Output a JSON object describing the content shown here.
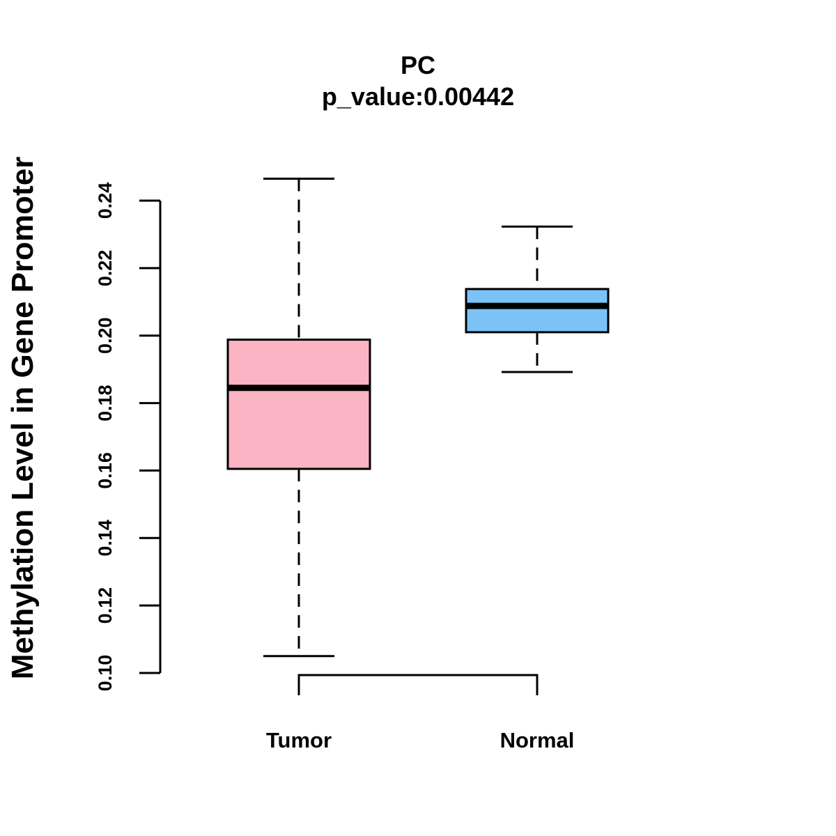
{
  "chart_data": {
    "type": "boxplot",
    "title": "PC",
    "subtitle": "p_value:0.00442",
    "xlabel": "",
    "ylabel": "Methylation Level in Gene Promoter",
    "ylim": [
      0.1,
      0.24
    ],
    "yticks": [
      0.1,
      0.12,
      0.14,
      0.16,
      0.18,
      0.2,
      0.22,
      0.24
    ],
    "ytick_labels": [
      "0.10",
      "0.12",
      "0.14",
      "0.16",
      "0.18",
      "0.20",
      "0.22",
      "0.24"
    ],
    "categories": [
      "Tumor",
      "Normal"
    ],
    "boxes": [
      {
        "name": "Tumor",
        "color": "#FBB4C4",
        "whisker_low": 0.105,
        "q1": 0.1605,
        "median": 0.1845,
        "q3": 0.1988,
        "whisker_high": 0.2465
      },
      {
        "name": "Normal",
        "color": "#7BC3F7",
        "whisker_low": 0.1892,
        "q1": 0.201,
        "median": 0.2088,
        "q3": 0.2138,
        "whisker_high": 0.2323
      }
    ],
    "bracket": {
      "from": "Tumor",
      "to": "Normal"
    }
  }
}
